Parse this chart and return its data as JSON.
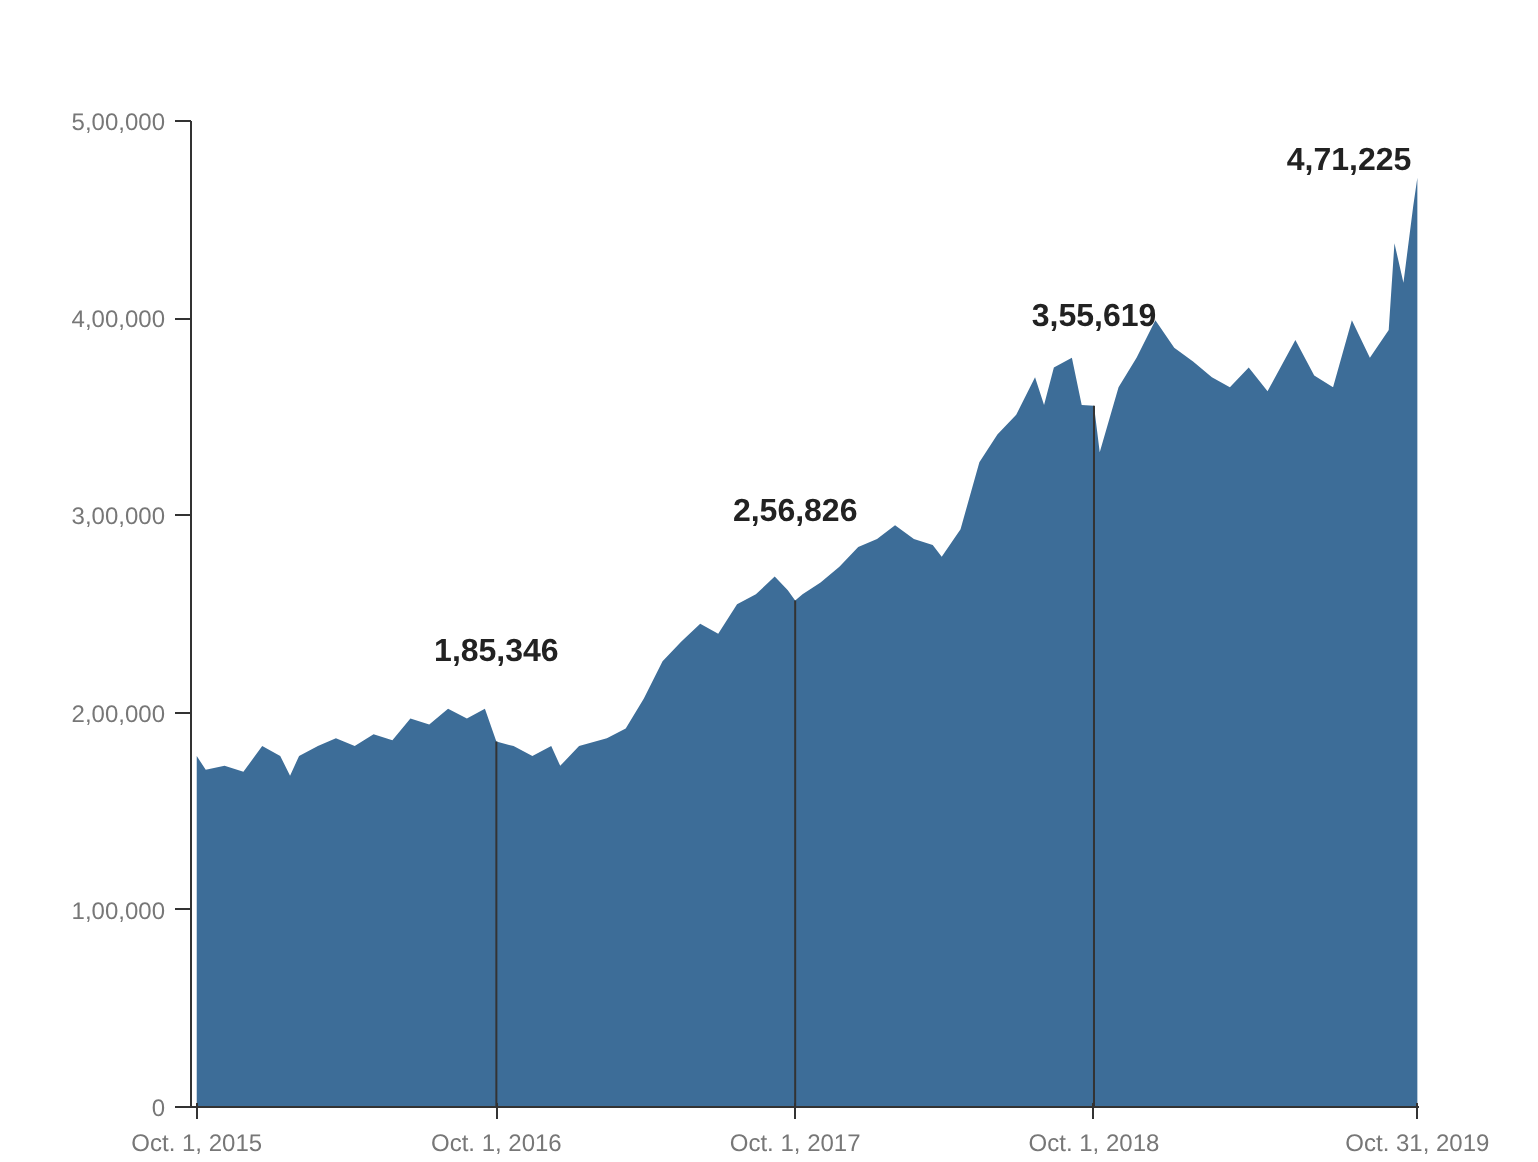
{
  "chart_data": {
    "type": "area",
    "color": "#3d6d98",
    "grid": false,
    "x": [
      "2015-10-01",
      "2015-10-12",
      "2015-11-04",
      "2015-11-27",
      "2015-12-20",
      "2016-01-11",
      "2016-01-23",
      "2016-02-03",
      "2016-02-26",
      "2016-03-19",
      "2016-04-11",
      "2016-05-04",
      "2016-05-27",
      "2016-06-18",
      "2016-07-11",
      "2016-08-03",
      "2016-08-26",
      "2016-09-17",
      "2016-10-01",
      "2016-10-22",
      "2016-11-14",
      "2016-12-07",
      "2016-12-18",
      "2017-01-10",
      "2017-02-13",
      "2017-03-08",
      "2017-03-30",
      "2017-04-22",
      "2017-05-15",
      "2017-06-07",
      "2017-06-29",
      "2017-07-22",
      "2017-08-14",
      "2017-09-06",
      "2017-09-22",
      "2017-10-01",
      "2017-10-10",
      "2017-11-01",
      "2017-11-24",
      "2017-12-17",
      "2018-01-09",
      "2018-01-31",
      "2018-02-23",
      "2018-03-18",
      "2018-03-29",
      "2018-04-21",
      "2018-05-14",
      "2018-06-05",
      "2018-06-28",
      "2018-07-21",
      "2018-08-01",
      "2018-08-13",
      "2018-09-04",
      "2018-09-16",
      "2018-10-01",
      "2018-10-08",
      "2018-10-31",
      "2018-11-22",
      "2018-12-15",
      "2019-01-07",
      "2019-01-30",
      "2019-02-22",
      "2019-03-16",
      "2019-04-08",
      "2019-05-01",
      "2019-06-04",
      "2019-06-27",
      "2019-07-20",
      "2019-08-12",
      "2019-09-03",
      "2019-09-26",
      "2019-10-03",
      "2019-10-14",
      "2019-10-26",
      "2019-10-31"
    ],
    "values": [
      178000,
      171000,
      173000,
      170000,
      183000,
      178000,
      168000,
      178000,
      183000,
      187000,
      183000,
      189000,
      186000,
      197000,
      194000,
      202000,
      197000,
      202000,
      185346,
      183000,
      178000,
      183000,
      173000,
      183000,
      187000,
      192000,
      207000,
      226000,
      236000,
      245000,
      240000,
      255000,
      260000,
      269000,
      262000,
      256826,
      260000,
      266000,
      274000,
      284000,
      288000,
      295000,
      288000,
      285000,
      279000,
      293000,
      327000,
      341000,
      351000,
      370000,
      356000,
      375000,
      380000,
      356000,
      355619,
      332000,
      365000,
      380000,
      399000,
      385000,
      378000,
      370000,
      365000,
      375000,
      363000,
      389000,
      371000,
      365000,
      399000,
      380000,
      394000,
      438000,
      418000,
      457000,
      471225
    ],
    "xlim": [
      "2015-09-24",
      "2019-11-02"
    ],
    "xticks": [
      {
        "value": "2015-10-01",
        "label": "Oct. 1, 2015"
      },
      {
        "value": "2016-10-01",
        "label": "Oct. 1, 2016"
      },
      {
        "value": "2017-10-01",
        "label": "Oct. 1, 2017"
      },
      {
        "value": "2018-10-01",
        "label": "Oct. 1, 2018"
      },
      {
        "value": "2019-10-31",
        "label": "Oct. 31, 2019"
      }
    ],
    "ylim": [
      0,
      500000
    ],
    "yticks": [
      {
        "value": 0,
        "label": "0"
      },
      {
        "value": 100000,
        "label": "1,00,000"
      },
      {
        "value": 200000,
        "label": "2,00,000"
      },
      {
        "value": 300000,
        "label": "3,00,000"
      },
      {
        "value": 400000,
        "label": "4,00,000"
      },
      {
        "value": 500000,
        "label": "5,00,000"
      }
    ],
    "ref_lines": [
      {
        "axis": "x",
        "value": "2016-10-01",
        "color": "#333333"
      },
      {
        "axis": "x",
        "value": "2017-10-01",
        "color": "#333333"
      },
      {
        "axis": "x",
        "value": "2018-10-01",
        "color": "#333333"
      }
    ],
    "annotations": [
      {
        "text": "1,85,346",
        "x": "2016-10-01",
        "y": 185346
      },
      {
        "text": "2,56,826",
        "x": "2017-10-01",
        "y": 256826
      },
      {
        "text": "3,55,619",
        "x": "2018-10-01",
        "y": 355619
      },
      {
        "text": "4,71,225",
        "x": "2019-10-31",
        "y": 471225
      }
    ]
  }
}
